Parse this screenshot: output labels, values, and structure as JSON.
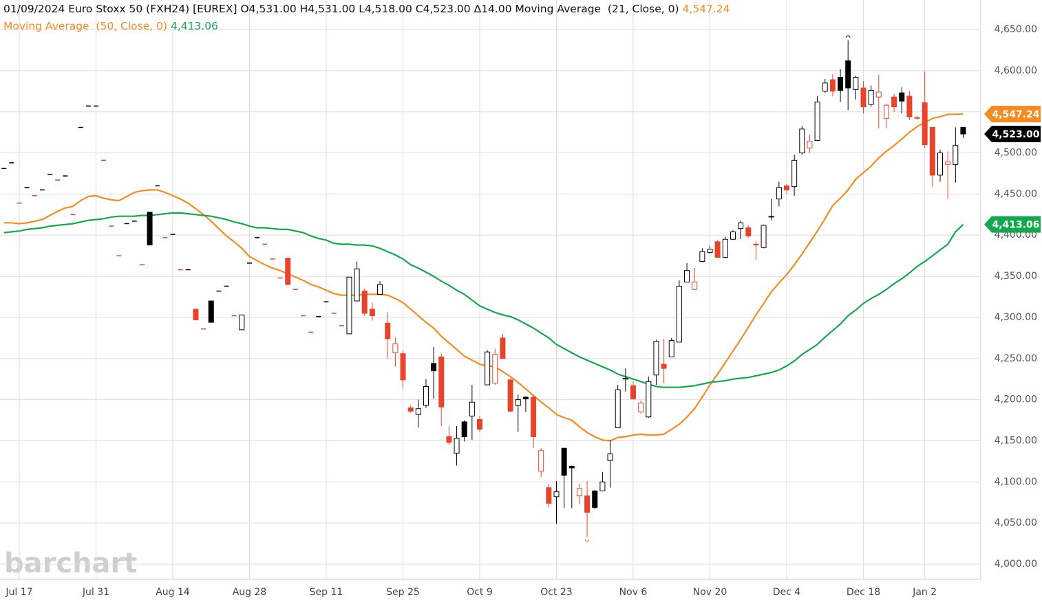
{
  "chart_data": {
    "type": "candlestick",
    "title": "01/09/2024 Euro Stoxx 50 (FXH24) [EUREX]",
    "header_values": "O4,531.00 H4,531.00 L4,518.00 C4,523.00 Δ14.00",
    "watermark": "barchart",
    "categories": [
      null,
      null,
      "Jul 17",
      null,
      null,
      null,
      null,
      null,
      null,
      null,
      null,
      null,
      "Jul 31",
      null,
      null,
      null,
      null,
      null,
      null,
      null,
      null,
      null,
      "Aug 14",
      null,
      null,
      null,
      null,
      null,
      null,
      null,
      null,
      null,
      "Aug 28",
      null,
      null,
      null,
      null,
      null,
      null,
      null,
      null,
      null,
      "Sep 11",
      null,
      null,
      null,
      null,
      null,
      null,
      null,
      null,
      null,
      "Sep 25",
      null,
      null,
      null,
      null,
      null,
      null,
      null,
      null,
      null,
      "Oct 9",
      null,
      null,
      null,
      null,
      null,
      null,
      null,
      null,
      null,
      "Oct 23",
      null,
      null,
      null,
      null,
      null,
      null,
      null,
      null,
      null,
      "Nov 6",
      null,
      null,
      null,
      null,
      null,
      null,
      null,
      null,
      null,
      "Nov 20",
      null,
      null,
      null,
      null,
      null,
      null,
      null,
      null,
      null,
      "Dec 4",
      null,
      null,
      null,
      null,
      null,
      null,
      null,
      null,
      null,
      "Dec 18",
      null,
      null,
      null,
      null,
      null,
      null,
      null,
      "Jan 2",
      null,
      null,
      null,
      null,
      null
    ],
    "candles": {
      "up_color": "#000000",
      "down_color": "#e8442c",
      "close_label": "4,523.00",
      "open": [
        4481,
        4488,
        4439,
        4458,
        4448,
        4455,
        4474,
        4467,
        4472,
        4425,
        4531,
        4557,
        4557,
        4491,
        4411,
        4375,
        4414,
        4417,
        4364,
        4428,
        4460,
        4397,
        4401,
        4358,
        4358,
        4310,
        4286,
        4320,
        4332,
        4338,
        4302,
        4285,
        4366,
        4397,
        4389,
        4371,
        4348,
        4372,
        4334,
        4302,
        4282,
        4301,
        4319,
        4305,
        4290,
        4280,
        4320,
        4332,
        4310,
        4328,
        4293,
        4257,
        4256,
        4190,
        4182,
        4193,
        4244,
        4252,
        4155,
        4135,
        4173,
        4180,
        4176,
        4218,
        4220,
        4275,
        4224,
        4193,
        4203,
        4203,
        4113,
        4093,
        4082,
        4141,
        4119,
        4083,
        4083,
        4089,
        4089,
        4126,
        4166,
        4225,
        4217,
        4185,
        4179,
        4230,
        4243,
        4252,
        4270,
        4343,
        4334,
        4368,
        4379,
        4392,
        4373,
        4395,
        4408,
        4409,
        4389,
        4385,
        4422,
        4444,
        4460,
        4459,
        4500,
        4506,
        4515,
        4575,
        4589,
        4592,
        4612,
        4577,
        4579,
        4559,
        4568,
        4542,
        4568,
        4573,
        4569,
        4543,
        4561,
        4531,
        4473,
        4486,
        4486,
        4531
      ],
      "high": [
        4481,
        4488,
        4439,
        4458,
        4448,
        4455,
        4474,
        4467,
        4472,
        4425,
        4531,
        4557,
        4557,
        4491,
        4411,
        4375,
        4414,
        4417,
        4364,
        4428,
        4460,
        4397,
        4401,
        4358,
        4358,
        4310,
        4286,
        4320,
        4332,
        4338,
        4302,
        4303,
        4366,
        4397,
        4389,
        4371,
        4348,
        4372,
        4334,
        4302,
        4282,
        4301,
        4319,
        4305,
        4290,
        4349,
        4368,
        4335,
        4318,
        4344,
        4306,
        4276,
        4260,
        4193,
        4200,
        4225,
        4264,
        4256,
        4168,
        4168,
        4175,
        4218,
        4180,
        4260,
        4262,
        4280,
        4226,
        4206,
        4204,
        4206,
        4141,
        4097,
        4101,
        4141,
        4120,
        4098,
        4101,
        4090,
        4112,
        4151,
        4218,
        4238,
        4222,
        4199,
        4228,
        4273,
        4274,
        4275,
        4345,
        4366,
        4360,
        4384,
        4387,
        4394,
        4398,
        4406,
        4418,
        4412,
        4393,
        4413,
        4444,
        4465,
        4462,
        4498,
        4533,
        4522,
        4569,
        4590,
        4596,
        4602,
        4637,
        4594,
        4587,
        4582,
        4595,
        4560,
        4572,
        4580,
        4575,
        4545,
        4599,
        4531,
        4504,
        4502,
        4531,
        4531
      ],
      "low": [
        4481,
        4488,
        4439,
        4458,
        4448,
        4455,
        4474,
        4467,
        4472,
        4425,
        4531,
        4557,
        4557,
        4491,
        4411,
        4375,
        4414,
        4417,
        4364,
        4388,
        4460,
        4397,
        4401,
        4358,
        4358,
        4297,
        4286,
        4294,
        4332,
        4338,
        4302,
        4285,
        4366,
        4397,
        4389,
        4371,
        4348,
        4340,
        4334,
        4302,
        4282,
        4301,
        4319,
        4305,
        4290,
        4280,
        4320,
        4302,
        4296,
        4328,
        4250,
        4240,
        4214,
        4184,
        4166,
        4190,
        4201,
        4168,
        4145,
        4120,
        4149,
        4151,
        4161,
        4218,
        4218,
        4250,
        4185,
        4161,
        4185,
        4141,
        4106,
        4069,
        4049,
        4068,
        4068,
        4073,
        4033,
        4067,
        4089,
        4093,
        4166,
        4210,
        4200,
        4183,
        4178,
        4218,
        4220,
        4252,
        4270,
        4343,
        4334,
        4367,
        4378,
        4373,
        4372,
        4394,
        4395,
        4397,
        4370,
        4384,
        4418,
        4435,
        4450,
        4448,
        4498,
        4500,
        4515,
        4573,
        4569,
        4562,
        4552,
        4565,
        4548,
        4556,
        4530,
        4530,
        4550,
        4548,
        4540,
        4540,
        4506,
        4459,
        4465,
        4444,
        4464,
        4518
      ],
      "close": [
        4481,
        4488,
        4439,
        4458,
        4448,
        4455,
        4474,
        4467,
        4472,
        4425,
        4531,
        4557,
        4557,
        4491,
        4411,
        4375,
        4414,
        4417,
        4364,
        4388,
        4460,
        4397,
        4401,
        4358,
        4358,
        4297,
        4286,
        4294,
        4332,
        4338,
        4302,
        4303,
        4366,
        4397,
        4389,
        4371,
        4348,
        4340,
        4334,
        4302,
        4282,
        4301,
        4319,
        4305,
        4290,
        4349,
        4359,
        4305,
        4302,
        4340,
        4274,
        4268,
        4224,
        4186,
        4189,
        4216,
        4235,
        4191,
        4148,
        4153,
        4155,
        4197,
        4164,
        4258,
        4255,
        4250,
        4186,
        4200,
        4201,
        4155,
        4138,
        4074,
        4088,
        4108,
        4117,
        4092,
        4063,
        4069,
        4100,
        4134,
        4212,
        4226,
        4201,
        4196,
        4222,
        4271,
        4238,
        4272,
        4338,
        4357,
        4343,
        4380,
        4383,
        4373,
        4395,
        4404,
        4415,
        4399,
        4388,
        4412,
        4423,
        4458,
        4455,
        4491,
        4529,
        4514,
        4562,
        4585,
        4575,
        4576,
        4579,
        4592,
        4556,
        4576,
        4574,
        4558,
        4556,
        4563,
        4544,
        4542,
        4510,
        4473,
        4500,
        4489,
        4509,
        4523
      ]
    },
    "series": [
      {
        "name": "Moving Average  (21, Close, 0)",
        "color": "#f68b1f",
        "label_color": "#f68b1f",
        "last_label": "4,547.24",
        "values": [
          4415,
          4415,
          4414,
          4415,
          4417,
          4419,
          4424,
          4429,
          4433,
          4435,
          4442,
          4447,
          4448,
          4445,
          4443,
          4442,
          4447,
          4452,
          4454,
          4455,
          4455,
          4452,
          4448,
          4444,
          4439,
          4432,
          4425,
          4417,
          4408,
          4399,
          4392,
          4384,
          4374,
          4369,
          4364,
          4360,
          4357,
          4353,
          4349,
          4345,
          4340,
          4337,
          4333,
          4329,
          4327,
          4327,
          4327,
          4328,
          4328,
          4328,
          4327,
          4323,
          4318,
          4310,
          4302,
          4294,
          4287,
          4277,
          4269,
          4261,
          4253,
          4248,
          4243,
          4241,
          4240,
          4234,
          4228,
          4221,
          4213,
          4205,
          4197,
          4190,
          4182,
          4178,
          4175,
          4167,
          4160,
          4155,
          4151,
          4150,
          4154,
          4155,
          4157,
          4158,
          4157,
          4157,
          4158,
          4164,
          4170,
          4179,
          4189,
          4203,
          4218,
          4231,
          4245,
          4259,
          4273,
          4288,
          4303,
          4317,
          4331,
          4342,
          4352,
          4364,
          4377,
          4391,
          4405,
          4420,
          4436,
          4445,
          4455,
          4468,
          4476,
          4484,
          4494,
          4502,
          4509,
          4517,
          4525,
          4532,
          4537,
          4542,
          4544,
          4547,
          4547,
          4547.24
        ]
      },
      {
        "name": "Moving Average  (50, Close, 0)",
        "color": "#12a84e",
        "label_color": "#f68b1f",
        "last_label": "4,413.06",
        "values": [
          4403,
          4404,
          4405,
          4407,
          4408,
          4409,
          4411,
          4412,
          4413,
          4414,
          4416,
          4418,
          4419,
          4420,
          4422,
          4423,
          4423,
          4423,
          4424,
          4424,
          4425,
          4426,
          4427,
          4427,
          4426,
          4425,
          4424,
          4423,
          4421,
          4419,
          4416,
          4414,
          4411,
          4409,
          4409,
          4408,
          4407,
          4407,
          4405,
          4403,
          4399,
          4396,
          4394,
          4390,
          4389,
          4389,
          4388,
          4388,
          4387,
          4384,
          4380,
          4376,
          4371,
          4364,
          4360,
          4355,
          4350,
          4344,
          4339,
          4333,
          4328,
          4321,
          4314,
          4310,
          4306,
          4303,
          4301,
          4297,
          4292,
          4287,
          4281,
          4275,
          4267,
          4262,
          4257,
          4252,
          4248,
          4244,
          4240,
          4236,
          4231,
          4228,
          4225,
          4222,
          4219,
          4216,
          4215,
          4215,
          4215,
          4216,
          4217,
          4219,
          4221,
          4222,
          4223,
          4225,
          4226,
          4227,
          4229,
          4231,
          4233,
          4236,
          4241,
          4247,
          4255,
          4261,
          4267,
          4276,
          4284,
          4292,
          4302,
          4309,
          4317,
          4323,
          4328,
          4334,
          4341,
          4347,
          4354,
          4362,
          4368,
          4375,
          4382,
          4389,
          4404,
          4413.06
        ]
      }
    ],
    "ylim": [
      4000,
      4650
    ],
    "yticks": [
      {
        "value": 4000,
        "label": "4,000.00"
      },
      {
        "value": 4050,
        "label": "4,050.00"
      },
      {
        "value": 4100,
        "label": "4,100.00"
      },
      {
        "value": 4150,
        "label": "4,150.00"
      },
      {
        "value": 4200,
        "label": "4,200.00"
      },
      {
        "value": 4250,
        "label": "4,250.00"
      },
      {
        "value": 4300,
        "label": "4,300.00"
      },
      {
        "value": 4350,
        "label": "4,350.00"
      },
      {
        "value": 4400,
        "label": "4,400.00"
      },
      {
        "value": 4450,
        "label": "4,450.00"
      },
      {
        "value": 4500,
        "label": "4,500.00"
      },
      {
        "value": 4550,
        "label": "4,550.00"
      },
      {
        "value": 4600,
        "label": "4,600.00"
      },
      {
        "value": 4650,
        "label": "4,650.00"
      }
    ],
    "grid": true
  }
}
